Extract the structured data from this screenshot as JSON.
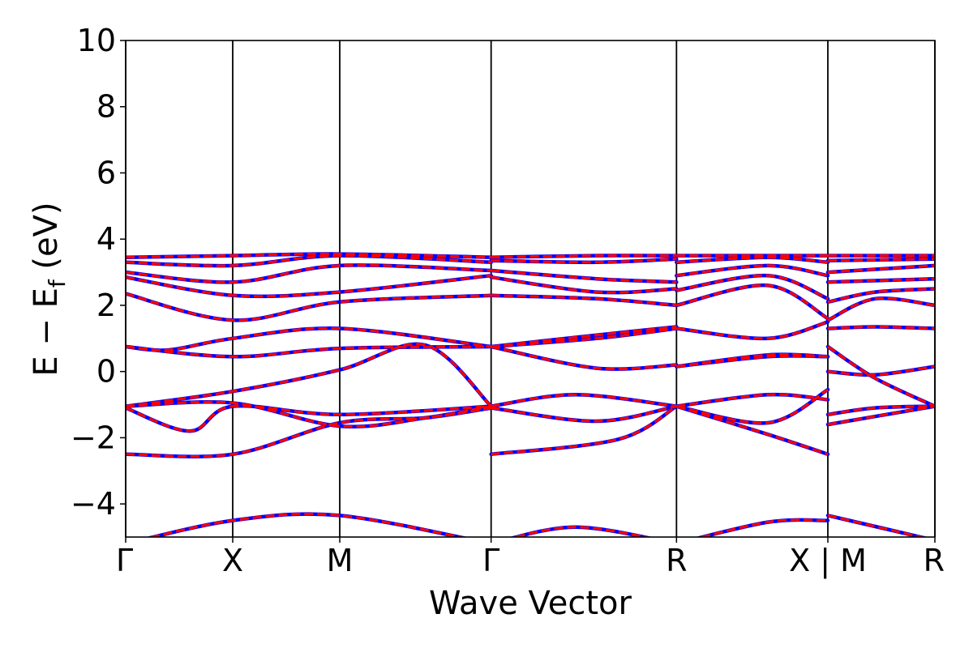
{
  "chart_data": {
    "type": "line",
    "title": "",
    "xlabel": "Wave Vector",
    "ylabel": "E − E_f (eV)",
    "ylabel_parts": {
      "main": "E − E",
      "sub": "f",
      "unit": " (eV)"
    },
    "ylim": [
      -5,
      10
    ],
    "yticks": [
      -4,
      -2,
      0,
      2,
      4,
      6,
      8,
      10
    ],
    "ytick_labels": [
      "−4",
      "−2",
      "0",
      "2",
      "4",
      "6",
      "8",
      "10"
    ],
    "grid": false,
    "legend": "none",
    "kpoints": [
      {
        "pos": 0.0,
        "label": "Γ"
      },
      {
        "pos": 0.5,
        "label": "X"
      },
      {
        "pos": 1.0,
        "label": "M"
      },
      {
        "pos": 1.707,
        "label": "Γ"
      },
      {
        "pos": 2.573,
        "label": "R"
      },
      {
        "pos": 3.28,
        "label": "X | M"
      },
      {
        "pos": 3.78,
        "label": "R"
      }
    ],
    "series_styles": [
      {
        "style": "solid",
        "color": "#0000ff",
        "width": 4.5
      },
      {
        "style": "dashed",
        "color": "#ff0000",
        "width": 3.2
      }
    ],
    "bands": [
      [
        {
          "x": 0,
          "y": -5.2
        },
        {
          "x": 0.5,
          "y": -4.5
        },
        {
          "x": 1.0,
          "y": -4.35
        },
        {
          "x": 1.707,
          "y": -5.2
        }
      ],
      [
        {
          "x": 1.707,
          "y": -5.2
        },
        {
          "x": 2.1,
          "y": -4.7
        },
        {
          "x": 2.573,
          "y": -5.2
        }
      ],
      [
        {
          "x": 2.573,
          "y": -5.2
        },
        {
          "x": 3.0,
          "y": -4.55
        },
        {
          "x": 3.28,
          "y": -4.5
        }
      ],
      [
        {
          "x": 3.28,
          "y": -4.35
        },
        {
          "x": 3.78,
          "y": -5.1
        }
      ],
      [
        {
          "x": 0,
          "y": -2.5
        },
        {
          "x": 0.5,
          "y": -2.5
        },
        {
          "x": 1.0,
          "y": -1.55
        },
        {
          "x": 1.4,
          "y": -1.4
        },
        {
          "x": 1.707,
          "y": -1.1
        }
      ],
      [
        {
          "x": 1.707,
          "y": -2.5
        },
        {
          "x": 2.3,
          "y": -2.05
        },
        {
          "x": 2.573,
          "y": -1.05
        }
      ],
      [
        {
          "x": 2.573,
          "y": -1.05
        },
        {
          "x": 3.0,
          "y": -1.9
        },
        {
          "x": 3.28,
          "y": -2.5
        }
      ],
      [
        {
          "x": 3.28,
          "y": -1.3
        },
        {
          "x": 3.5,
          "y": -1.1
        },
        {
          "x": 3.78,
          "y": -1.05
        }
      ],
      [
        {
          "x": 0,
          "y": -1.1
        },
        {
          "x": 0.3,
          "y": -1.8
        },
        {
          "x": 0.5,
          "y": -1.05
        },
        {
          "x": 1.0,
          "y": -1.3
        },
        {
          "x": 1.707,
          "y": -1.05
        }
      ],
      [
        {
          "x": 1.707,
          "y": -1.1
        },
        {
          "x": 2.2,
          "y": -1.5
        },
        {
          "x": 2.573,
          "y": -1.05
        }
      ],
      [
        {
          "x": 2.573,
          "y": -1.05
        },
        {
          "x": 3.0,
          "y": -1.55
        },
        {
          "x": 3.28,
          "y": -0.55
        }
      ],
      [
        {
          "x": 3.28,
          "y": -1.6
        },
        {
          "x": 3.78,
          "y": -1.05
        }
      ],
      [
        {
          "x": 0,
          "y": -1.05
        },
        {
          "x": 0.5,
          "y": -0.95
        },
        {
          "x": 1.0,
          "y": -1.65
        },
        {
          "x": 1.4,
          "y": -1.4
        },
        {
          "x": 1.707,
          "y": -1.05
        }
      ],
      [
        {
          "x": 1.707,
          "y": -1.05
        },
        {
          "x": 2.1,
          "y": -0.7
        },
        {
          "x": 2.573,
          "y": -1.05
        }
      ],
      [
        {
          "x": 2.573,
          "y": -1.05
        },
        {
          "x": 3.0,
          "y": -0.7
        },
        {
          "x": 3.28,
          "y": -0.85
        }
      ],
      [
        {
          "x": 3.28,
          "y": 0.0
        },
        {
          "x": 3.5,
          "y": -0.1
        },
        {
          "x": 3.78,
          "y": 0.15
        }
      ],
      [
        {
          "x": 0,
          "y": -1.05
        },
        {
          "x": 0.5,
          "y": -0.6
        },
        {
          "x": 1.0,
          "y": 0.05
        },
        {
          "x": 1.4,
          "y": 0.8
        },
        {
          "x": 1.707,
          "y": -1.05
        }
      ],
      [
        {
          "x": 1.707,
          "y": 0.75
        },
        {
          "x": 2.2,
          "y": 0.1
        },
        {
          "x": 2.573,
          "y": 0.2
        }
      ],
      [
        {
          "x": 2.573,
          "y": 0.15
        },
        {
          "x": 3.0,
          "y": 0.5
        },
        {
          "x": 3.28,
          "y": 0.45
        }
      ],
      [
        {
          "x": 3.28,
          "y": 0.75
        },
        {
          "x": 3.5,
          "y": -0.2
        },
        {
          "x": 3.78,
          "y": -1.05
        }
      ],
      [
        {
          "x": 0,
          "y": 0.75
        },
        {
          "x": 0.2,
          "y": 0.65
        },
        {
          "x": 0.5,
          "y": 1.0
        },
        {
          "x": 1.0,
          "y": 1.3
        },
        {
          "x": 1.707,
          "y": 0.75
        }
      ],
      [
        {
          "x": 1.707,
          "y": 0.75
        },
        {
          "x": 2.2,
          "y": 1.0
        },
        {
          "x": 2.573,
          "y": 1.3
        }
      ],
      [
        {
          "x": 2.573,
          "y": 1.3
        },
        {
          "x": 3.0,
          "y": 1.0
        },
        {
          "x": 3.28,
          "y": 1.5
        }
      ],
      [
        {
          "x": 3.28,
          "y": 1.3
        },
        {
          "x": 3.5,
          "y": 1.35
        },
        {
          "x": 3.78,
          "y": 1.3
        }
      ],
      [
        {
          "x": 0,
          "y": 0.75
        },
        {
          "x": 0.5,
          "y": 0.45
        },
        {
          "x": 1.0,
          "y": 0.7
        },
        {
          "x": 1.707,
          "y": 0.75
        }
      ],
      [
        {
          "x": 1.707,
          "y": 0.75
        },
        {
          "x": 2.2,
          "y": 1.1
        },
        {
          "x": 2.573,
          "y": 1.35
        }
      ],
      [
        {
          "x": 2.573,
          "y": 0.15
        },
        {
          "x": 3.0,
          "y": 0.45
        },
        {
          "x": 3.28,
          "y": 0.45
        }
      ],
      [
        {
          "x": 3.28,
          "y": 1.55
        },
        {
          "x": 3.5,
          "y": 2.2
        },
        {
          "x": 3.78,
          "y": 2.0
        }
      ],
      [
        {
          "x": 0,
          "y": 2.35
        },
        {
          "x": 0.5,
          "y": 1.55
        },
        {
          "x": 1.0,
          "y": 2.1
        },
        {
          "x": 1.707,
          "y": 2.3
        }
      ],
      [
        {
          "x": 1.707,
          "y": 2.3
        },
        {
          "x": 2.2,
          "y": 2.2
        },
        {
          "x": 2.573,
          "y": 2.0
        }
      ],
      [
        {
          "x": 2.573,
          "y": 2.0
        },
        {
          "x": 3.0,
          "y": 2.6
        },
        {
          "x": 3.28,
          "y": 1.6
        }
      ],
      [
        {
          "x": 3.28,
          "y": 2.1
        },
        {
          "x": 3.5,
          "y": 2.4
        },
        {
          "x": 3.78,
          "y": 2.5
        }
      ],
      [
        {
          "x": 0,
          "y": 2.85
        },
        {
          "x": 0.5,
          "y": 2.3
        },
        {
          "x": 1.0,
          "y": 2.4
        },
        {
          "x": 1.707,
          "y": 2.9
        }
      ],
      [
        {
          "x": 1.707,
          "y": 2.85
        },
        {
          "x": 2.2,
          "y": 2.4
        },
        {
          "x": 2.573,
          "y": 2.5
        }
      ],
      [
        {
          "x": 2.573,
          "y": 2.45
        },
        {
          "x": 3.0,
          "y": 2.9
        },
        {
          "x": 3.28,
          "y": 2.2
        }
      ],
      [
        {
          "x": 3.28,
          "y": 2.7
        },
        {
          "x": 3.78,
          "y": 2.8
        }
      ],
      [
        {
          "x": 0,
          "y": 3.0
        },
        {
          "x": 0.5,
          "y": 2.7
        },
        {
          "x": 1.0,
          "y": 3.2
        },
        {
          "x": 1.707,
          "y": 3.05
        }
      ],
      [
        {
          "x": 1.707,
          "y": 3.05
        },
        {
          "x": 2.2,
          "y": 2.8
        },
        {
          "x": 2.573,
          "y": 2.7
        }
      ],
      [
        {
          "x": 2.573,
          "y": 2.9
        },
        {
          "x": 3.0,
          "y": 3.2
        },
        {
          "x": 3.28,
          "y": 2.9
        }
      ],
      [
        {
          "x": 3.28,
          "y": 3.0
        },
        {
          "x": 3.78,
          "y": 3.2
        }
      ],
      [
        {
          "x": 0,
          "y": 3.3
        },
        {
          "x": 0.5,
          "y": 3.2
        },
        {
          "x": 1.0,
          "y": 3.5
        },
        {
          "x": 1.707,
          "y": 3.3
        }
      ],
      [
        {
          "x": 1.707,
          "y": 3.35
        },
        {
          "x": 2.2,
          "y": 3.3
        },
        {
          "x": 2.573,
          "y": 3.4
        }
      ],
      [
        {
          "x": 2.573,
          "y": 3.3
        },
        {
          "x": 3.0,
          "y": 3.45
        },
        {
          "x": 3.28,
          "y": 3.3
        }
      ],
      [
        {
          "x": 3.28,
          "y": 3.35
        },
        {
          "x": 3.78,
          "y": 3.4
        }
      ],
      [
        {
          "x": 0,
          "y": 3.45
        },
        {
          "x": 0.5,
          "y": 3.5
        },
        {
          "x": 1.0,
          "y": 3.55
        },
        {
          "x": 1.707,
          "y": 3.45
        }
      ],
      [
        {
          "x": 1.707,
          "y": 3.45
        },
        {
          "x": 2.2,
          "y": 3.5
        },
        {
          "x": 2.573,
          "y": 3.5
        }
      ],
      [
        {
          "x": 2.573,
          "y": 3.5
        },
        {
          "x": 3.0,
          "y": 3.5
        },
        {
          "x": 3.28,
          "y": 3.5
        }
      ],
      [
        {
          "x": 3.28,
          "y": 3.5
        },
        {
          "x": 3.78,
          "y": 3.5
        }
      ]
    ]
  }
}
